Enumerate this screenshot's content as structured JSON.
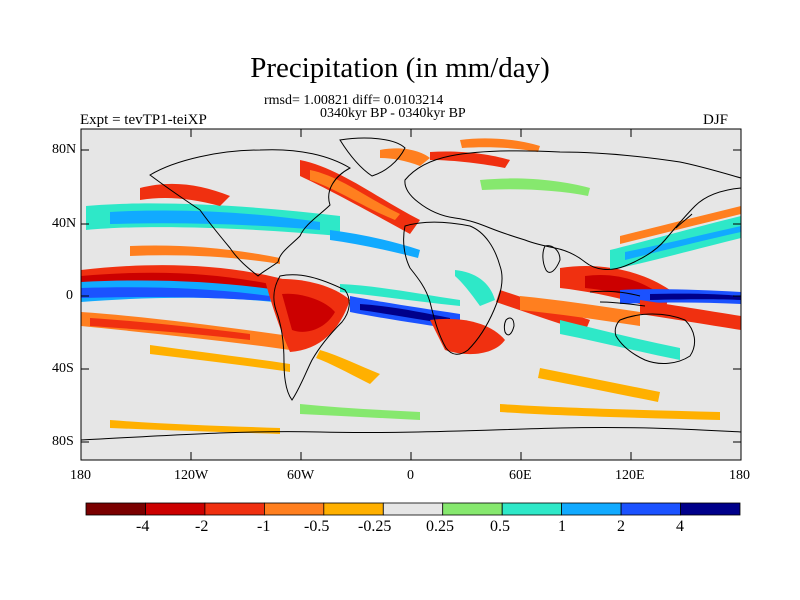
{
  "title": "Precipitation (in mm/day)",
  "stats": "rmsd= 1.00821 diff= 0.0103214",
  "period": "0340kyr BP - 0340kyr BP",
  "experiment": "Expt = tevTP1-teiXP",
  "season": "DJF",
  "lat_ticks": [
    "80N",
    "40N",
    "0",
    "40S",
    "80S"
  ],
  "lon_ticks": [
    "180",
    "120W",
    "60W",
    "0",
    "60E",
    "120E",
    "180"
  ],
  "colorbar": {
    "labels": [
      "-4",
      "-2",
      "-1",
      "-0.5",
      "-0.25",
      "0.25",
      "0.5",
      "1",
      "2",
      "4"
    ],
    "colors": [
      "#7a0000",
      "#cc0000",
      "#f03010",
      "#ff7f1f",
      "#ffb000",
      "#e6e6e6",
      "#86e86e",
      "#2ee8c8",
      "#11aaff",
      "#1b52ff",
      "#00008a"
    ]
  },
  "colors": {
    "background": "#e6e6e6",
    "coast": "#000000"
  }
}
